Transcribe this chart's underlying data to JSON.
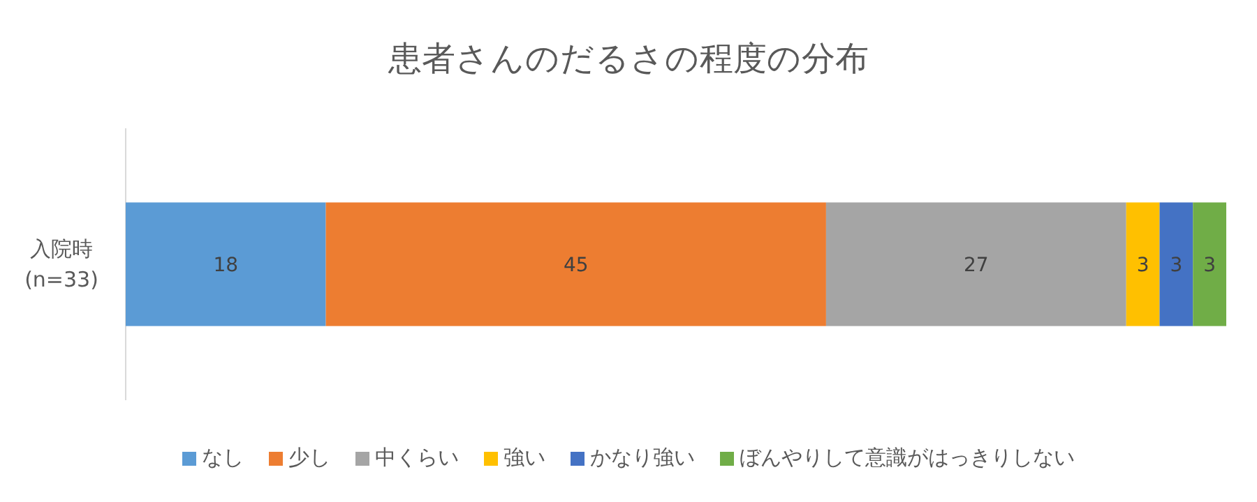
{
  "chart_data": {
    "type": "bar",
    "title": "患者さんのだるさの程度の分布",
    "orientation": "horizontal",
    "stacked": true,
    "data_labels": true,
    "legend": "bottom",
    "categories": [
      "入院時\n(n=33)"
    ],
    "series": [
      {
        "name": "なし",
        "color": "#5b9bd5",
        "values": [
          18
        ]
      },
      {
        "name": "少し",
        "color": "#ed7d31",
        "values": [
          45
        ]
      },
      {
        "name": "中くらい",
        "color": "#a5a5a5",
        "values": [
          27
        ]
      },
      {
        "name": "強い",
        "color": "#ffc000",
        "values": [
          3
        ]
      },
      {
        "name": "かなり強い",
        "color": "#4472c4",
        "values": [
          3
        ]
      },
      {
        "name": "ぼんやりして意識がはっきりしない",
        "color": "#70ad47",
        "values": [
          3
        ]
      }
    ]
  }
}
